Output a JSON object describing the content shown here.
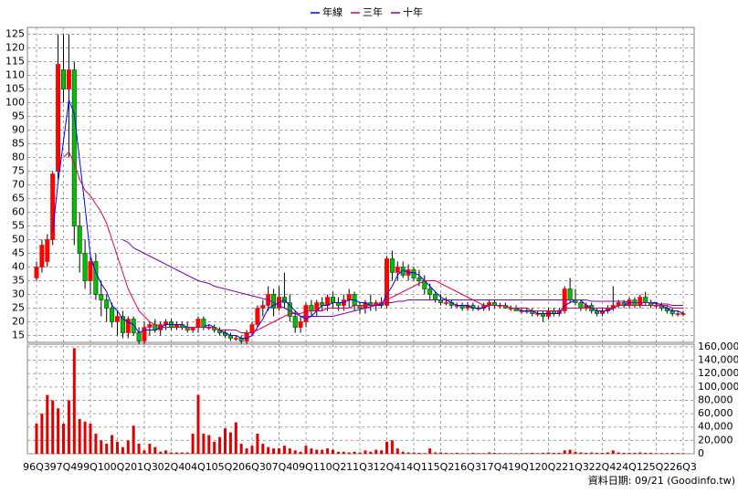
{
  "chart_data": [
    {
      "type": "candlestick",
      "legend": "top",
      "grid": true,
      "up_color": "#ff0000",
      "down_color": "#00c000",
      "ylim": [
        12.5,
        127.5
      ],
      "yticks": [
        15,
        20,
        25,
        30,
        35,
        40,
        45,
        50,
        55,
        60,
        65,
        70,
        75,
        80,
        85,
        90,
        95,
        100,
        105,
        110,
        115,
        120,
        125
      ],
      "open": [
        36,
        40,
        42,
        50,
        75,
        112,
        105,
        112,
        55,
        45,
        35,
        42,
        30,
        28,
        25,
        20,
        22,
        16,
        21,
        16,
        13,
        18,
        19,
        17,
        19,
        20,
        18,
        19,
        18,
        17,
        18,
        21,
        18,
        18,
        17,
        16,
        15,
        14,
        14,
        13,
        16,
        19,
        25,
        26,
        30,
        25,
        29,
        27,
        22,
        18,
        20,
        26,
        24,
        27,
        26,
        29,
        27,
        26,
        28,
        30,
        26,
        25,
        27,
        26,
        27,
        26,
        43,
        38,
        40,
        37,
        39,
        36,
        35,
        32,
        30,
        28,
        27,
        27,
        26,
        26,
        25,
        26,
        25,
        25,
        26,
        27,
        26,
        26,
        25,
        25,
        24,
        24,
        24,
        23,
        23,
        22,
        24,
        23,
        24,
        32,
        28,
        27,
        25,
        26,
        24,
        23,
        24,
        25,
        26,
        27,
        26,
        28,
        26,
        29,
        27,
        26,
        26,
        25,
        24,
        23,
        23
      ],
      "high": [
        42,
        50,
        52,
        75,
        125,
        125,
        125,
        115,
        60,
        50,
        45,
        45,
        35,
        30,
        27,
        24,
        24,
        22,
        22,
        18,
        20,
        20,
        21,
        20,
        21,
        21,
        20,
        20,
        20,
        18,
        22,
        22,
        19,
        19,
        18,
        17,
        16,
        15,
        15,
        17,
        20,
        26,
        28,
        33,
        32,
        33,
        38,
        30,
        24,
        22,
        27,
        28,
        28,
        29,
        30,
        31,
        29,
        30,
        32,
        31,
        27,
        28,
        30,
        28,
        29,
        44,
        46,
        42,
        42,
        41,
        40,
        39,
        37,
        34,
        31,
        30,
        29,
        28,
        27,
        27,
        27,
        27,
        26,
        27,
        28,
        28,
        27,
        27,
        26,
        26,
        25,
        25,
        25,
        24,
        24,
        25,
        25,
        25,
        33,
        36,
        32,
        28,
        27,
        27,
        25,
        25,
        26,
        33,
        28,
        28,
        29,
        29,
        30,
        31,
        28,
        27,
        27,
        26,
        25,
        24,
        24
      ],
      "low": [
        35,
        38,
        40,
        48,
        72,
        100,
        80,
        48,
        38,
        32,
        30,
        28,
        22,
        20,
        18,
        15,
        14,
        14,
        15,
        12,
        12,
        15,
        16,
        15,
        17,
        17,
        17,
        17,
        16,
        16,
        16,
        17,
        17,
        16,
        15,
        14,
        13,
        13,
        12,
        12,
        15,
        18,
        22,
        24,
        22,
        24,
        25,
        20,
        16,
        16,
        18,
        22,
        22,
        24,
        24,
        25,
        24,
        24,
        25,
        24,
        23,
        23,
        24,
        24,
        25,
        25,
        35,
        35,
        36,
        35,
        35,
        33,
        30,
        28,
        27,
        26,
        26,
        25,
        25,
        24,
        24,
        24,
        24,
        24,
        24,
        25,
        25,
        25,
        24,
        24,
        23,
        23,
        22,
        22,
        20,
        21,
        22,
        22,
        23,
        27,
        26,
        24,
        24,
        23,
        22,
        22,
        23,
        24,
        25,
        25,
        25,
        25,
        25,
        26,
        25,
        25,
        24,
        23,
        22,
        22,
        22
      ],
      "close": [
        40,
        48,
        50,
        74,
        114,
        105,
        112,
        55,
        45,
        35,
        42,
        30,
        28,
        25,
        20,
        22,
        16,
        21,
        16,
        13,
        18,
        19,
        17,
        19,
        20,
        18,
        19,
        18,
        17,
        18,
        21,
        18,
        18,
        17,
        16,
        15,
        14,
        14,
        13,
        16,
        19,
        25,
        26,
        30,
        25,
        29,
        27,
        22,
        18,
        20,
        26,
        24,
        27,
        26,
        29,
        27,
        26,
        28,
        30,
        26,
        25,
        27,
        26,
        27,
        26,
        43,
        38,
        40,
        37,
        39,
        36,
        35,
        32,
        30,
        28,
        27,
        27,
        26,
        26,
        25,
        26,
        25,
        25,
        26,
        27,
        26,
        26,
        25,
        25,
        24,
        24,
        24,
        23,
        23,
        22,
        24,
        23,
        24,
        32,
        28,
        27,
        25,
        26,
        24,
        23,
        24,
        25,
        26,
        27,
        26,
        28,
        26,
        29,
        27,
        26,
        26,
        25,
        24,
        23,
        23,
        23
      ],
      "series": [
        {
          "name": "年線",
          "color": "#0000ff",
          "values": [
            null,
            null,
            null,
            53,
            71,
            86,
            101,
            96,
            79,
            62,
            44,
            38,
            34,
            31,
            26,
            24,
            21,
            20,
            19,
            16,
            17,
            17,
            17,
            18,
            19,
            19,
            19,
            19,
            18,
            18,
            18,
            18,
            19,
            18,
            17,
            16,
            15,
            15,
            14,
            14,
            15,
            18,
            21,
            25,
            26,
            27,
            28,
            26,
            24,
            22,
            21,
            22,
            24,
            26,
            26,
            27,
            27,
            27,
            28,
            28,
            27,
            27,
            26,
            26,
            26,
            30,
            33,
            37,
            39,
            38,
            38,
            37,
            35,
            33,
            31,
            29,
            28,
            27,
            26,
            26,
            26,
            25,
            25,
            25,
            26,
            26,
            26,
            26,
            25,
            25,
            24,
            24,
            24,
            23,
            23,
            23,
            23,
            23,
            26,
            27,
            28,
            28,
            26,
            25,
            24,
            24,
            24,
            25,
            26,
            26,
            27,
            27,
            27,
            27,
            27,
            27,
            26,
            25,
            24,
            24,
            23
          ]
        },
        {
          "name": "三年",
          "color": "#e0005a",
          "values": [
            null,
            null,
            null,
            null,
            null,
            80,
            82,
            78,
            72,
            68,
            66,
            63,
            60,
            56,
            50,
            44,
            38,
            32,
            28,
            24,
            22,
            20,
            19,
            18,
            18,
            18,
            18,
            18,
            18,
            18,
            18,
            18,
            18,
            18,
            17,
            17,
            17,
            17,
            16,
            16,
            16,
            17,
            18,
            19,
            20,
            21,
            22,
            23,
            23,
            23,
            24,
            24,
            24,
            24,
            25,
            25,
            25,
            25,
            25,
            26,
            26,
            26,
            26,
            26,
            27,
            28,
            29,
            30,
            31,
            32,
            33,
            34,
            35,
            35,
            35,
            34,
            33,
            32,
            31,
            30,
            29,
            28,
            27,
            26,
            26,
            26,
            26,
            26,
            25,
            25,
            25,
            25,
            24,
            24,
            24,
            24,
            24,
            24,
            25,
            25,
            25,
            25,
            25,
            25,
            25,
            25,
            25,
            25,
            26,
            26,
            26,
            26,
            26,
            26,
            26,
            26,
            26,
            26,
            25,
            25,
            25
          ]
        },
        {
          "name": "十年",
          "color": "#8000c0",
          "values": [
            null,
            null,
            null,
            null,
            null,
            null,
            null,
            null,
            null,
            null,
            null,
            null,
            null,
            null,
            null,
            null,
            50,
            49,
            47,
            46,
            45,
            44,
            43,
            42,
            41,
            40,
            39,
            38,
            37,
            36,
            35,
            34.5,
            34,
            33,
            32.5,
            32,
            31.5,
            31,
            30.5,
            30,
            29.5,
            29,
            28.5,
            28,
            27,
            26,
            25,
            24,
            23,
            22,
            22,
            22,
            22,
            22,
            22,
            22,
            22.5,
            23,
            23.5,
            24,
            24.5,
            25,
            25.5,
            26,
            26.5,
            27,
            27,
            27.5,
            27.5,
            28,
            28,
            28,
            28,
            28,
            28,
            28,
            28,
            28,
            28,
            28,
            28,
            28,
            28,
            28,
            28,
            28,
            28,
            28,
            28,
            28,
            28,
            28,
            28,
            28,
            28,
            28,
            28,
            28,
            28,
            28,
            28,
            28,
            28,
            27.5,
            27.5,
            27.5,
            27.5,
            27.5,
            27.5,
            27.5,
            27,
            27,
            27,
            27,
            27,
            26.5,
            26.5,
            26.5,
            26,
            26,
            26
          ]
        }
      ]
    },
    {
      "type": "bar",
      "grid": true,
      "color": "#e00000",
      "ylim": [
        0,
        164000
      ],
      "yticks": [
        0,
        {
          "value": 20000,
          "label": "20,000"
        },
        {
          "value": 40000,
          "label": "40,000"
        },
        {
          "value": 60000,
          "label": "60,000"
        },
        {
          "value": 80000,
          "label": "80,000"
        },
        {
          "value": 100000,
          "label": "100,000"
        },
        {
          "value": 120000,
          "label": "120,000"
        },
        {
          "value": 140000,
          "label": "140,000"
        },
        {
          "value": 160000,
          "label": "160,000"
        }
      ],
      "categories": [
        "96Q3",
        null,
        null,
        null,
        null,
        "97Q4",
        null,
        null,
        null,
        null,
        "99Q1",
        null,
        null,
        null,
        null,
        "00Q2",
        null,
        null,
        null,
        null,
        "01Q3",
        null,
        null,
        null,
        null,
        "02Q4",
        null,
        null,
        null,
        null,
        "04Q1",
        null,
        null,
        null,
        null,
        "05Q2",
        null,
        null,
        null,
        null,
        "06Q3",
        null,
        null,
        null,
        null,
        "07Q4",
        null,
        null,
        null,
        null,
        "09Q1",
        null,
        null,
        null,
        null,
        "10Q2",
        null,
        null,
        null,
        null,
        "11Q3",
        null,
        null,
        null,
        null,
        "12Q4",
        null,
        null,
        null,
        null,
        "14Q1",
        null,
        null,
        null,
        null,
        "15Q2",
        null,
        null,
        null,
        null,
        "16Q3",
        null,
        null,
        null,
        null,
        "17Q4",
        null,
        null,
        null,
        null,
        "19Q1",
        null,
        null,
        null,
        null,
        "20Q2",
        null,
        null,
        null,
        null,
        "21Q3",
        null,
        null,
        null,
        null,
        "22Q4",
        null,
        null,
        null,
        null,
        "24Q1",
        null,
        null,
        null,
        null,
        "25Q2",
        null,
        null,
        null,
        null,
        "26Q3"
      ],
      "values": [
        45000,
        60000,
        88000,
        80000,
        68000,
        45000,
        80000,
        158000,
        52000,
        48000,
        45000,
        30000,
        20000,
        15000,
        28000,
        18000,
        10000,
        20000,
        42000,
        15000,
        5000,
        15000,
        10000,
        3000,
        5000,
        2000,
        2000,
        2000,
        2000,
        30000,
        88000,
        30000,
        28000,
        18000,
        25000,
        38000,
        32000,
        47000,
        15000,
        8000,
        12000,
        30000,
        15000,
        10000,
        8000,
        8000,
        12000,
        8000,
        5000,
        3000,
        12000,
        8000,
        6000,
        6000,
        8000,
        6000,
        3000,
        3000,
        2000,
        3000,
        2000,
        5000,
        3000,
        6000,
        5000,
        18000,
        20000,
        8000,
        3000,
        2000,
        2000,
        1500,
        1000,
        8000,
        2000,
        2000,
        1500,
        1000,
        1500,
        1000,
        1000,
        1500,
        1000,
        1000,
        2000,
        1500,
        1000,
        1000,
        1000,
        1000,
        1000,
        1000,
        1500,
        1000,
        1500,
        2000,
        1500,
        1500,
        5000,
        6000,
        3000,
        2000,
        1500,
        2000,
        1500,
        1500,
        2000,
        5000,
        2000,
        1500,
        1500,
        1500,
        2000,
        1500,
        1500,
        1000,
        1000,
        1000,
        1500,
        1000,
        1000
      ],
      "footnote": "資料日期: 09/21 (Goodinfo.tw)"
    }
  ]
}
